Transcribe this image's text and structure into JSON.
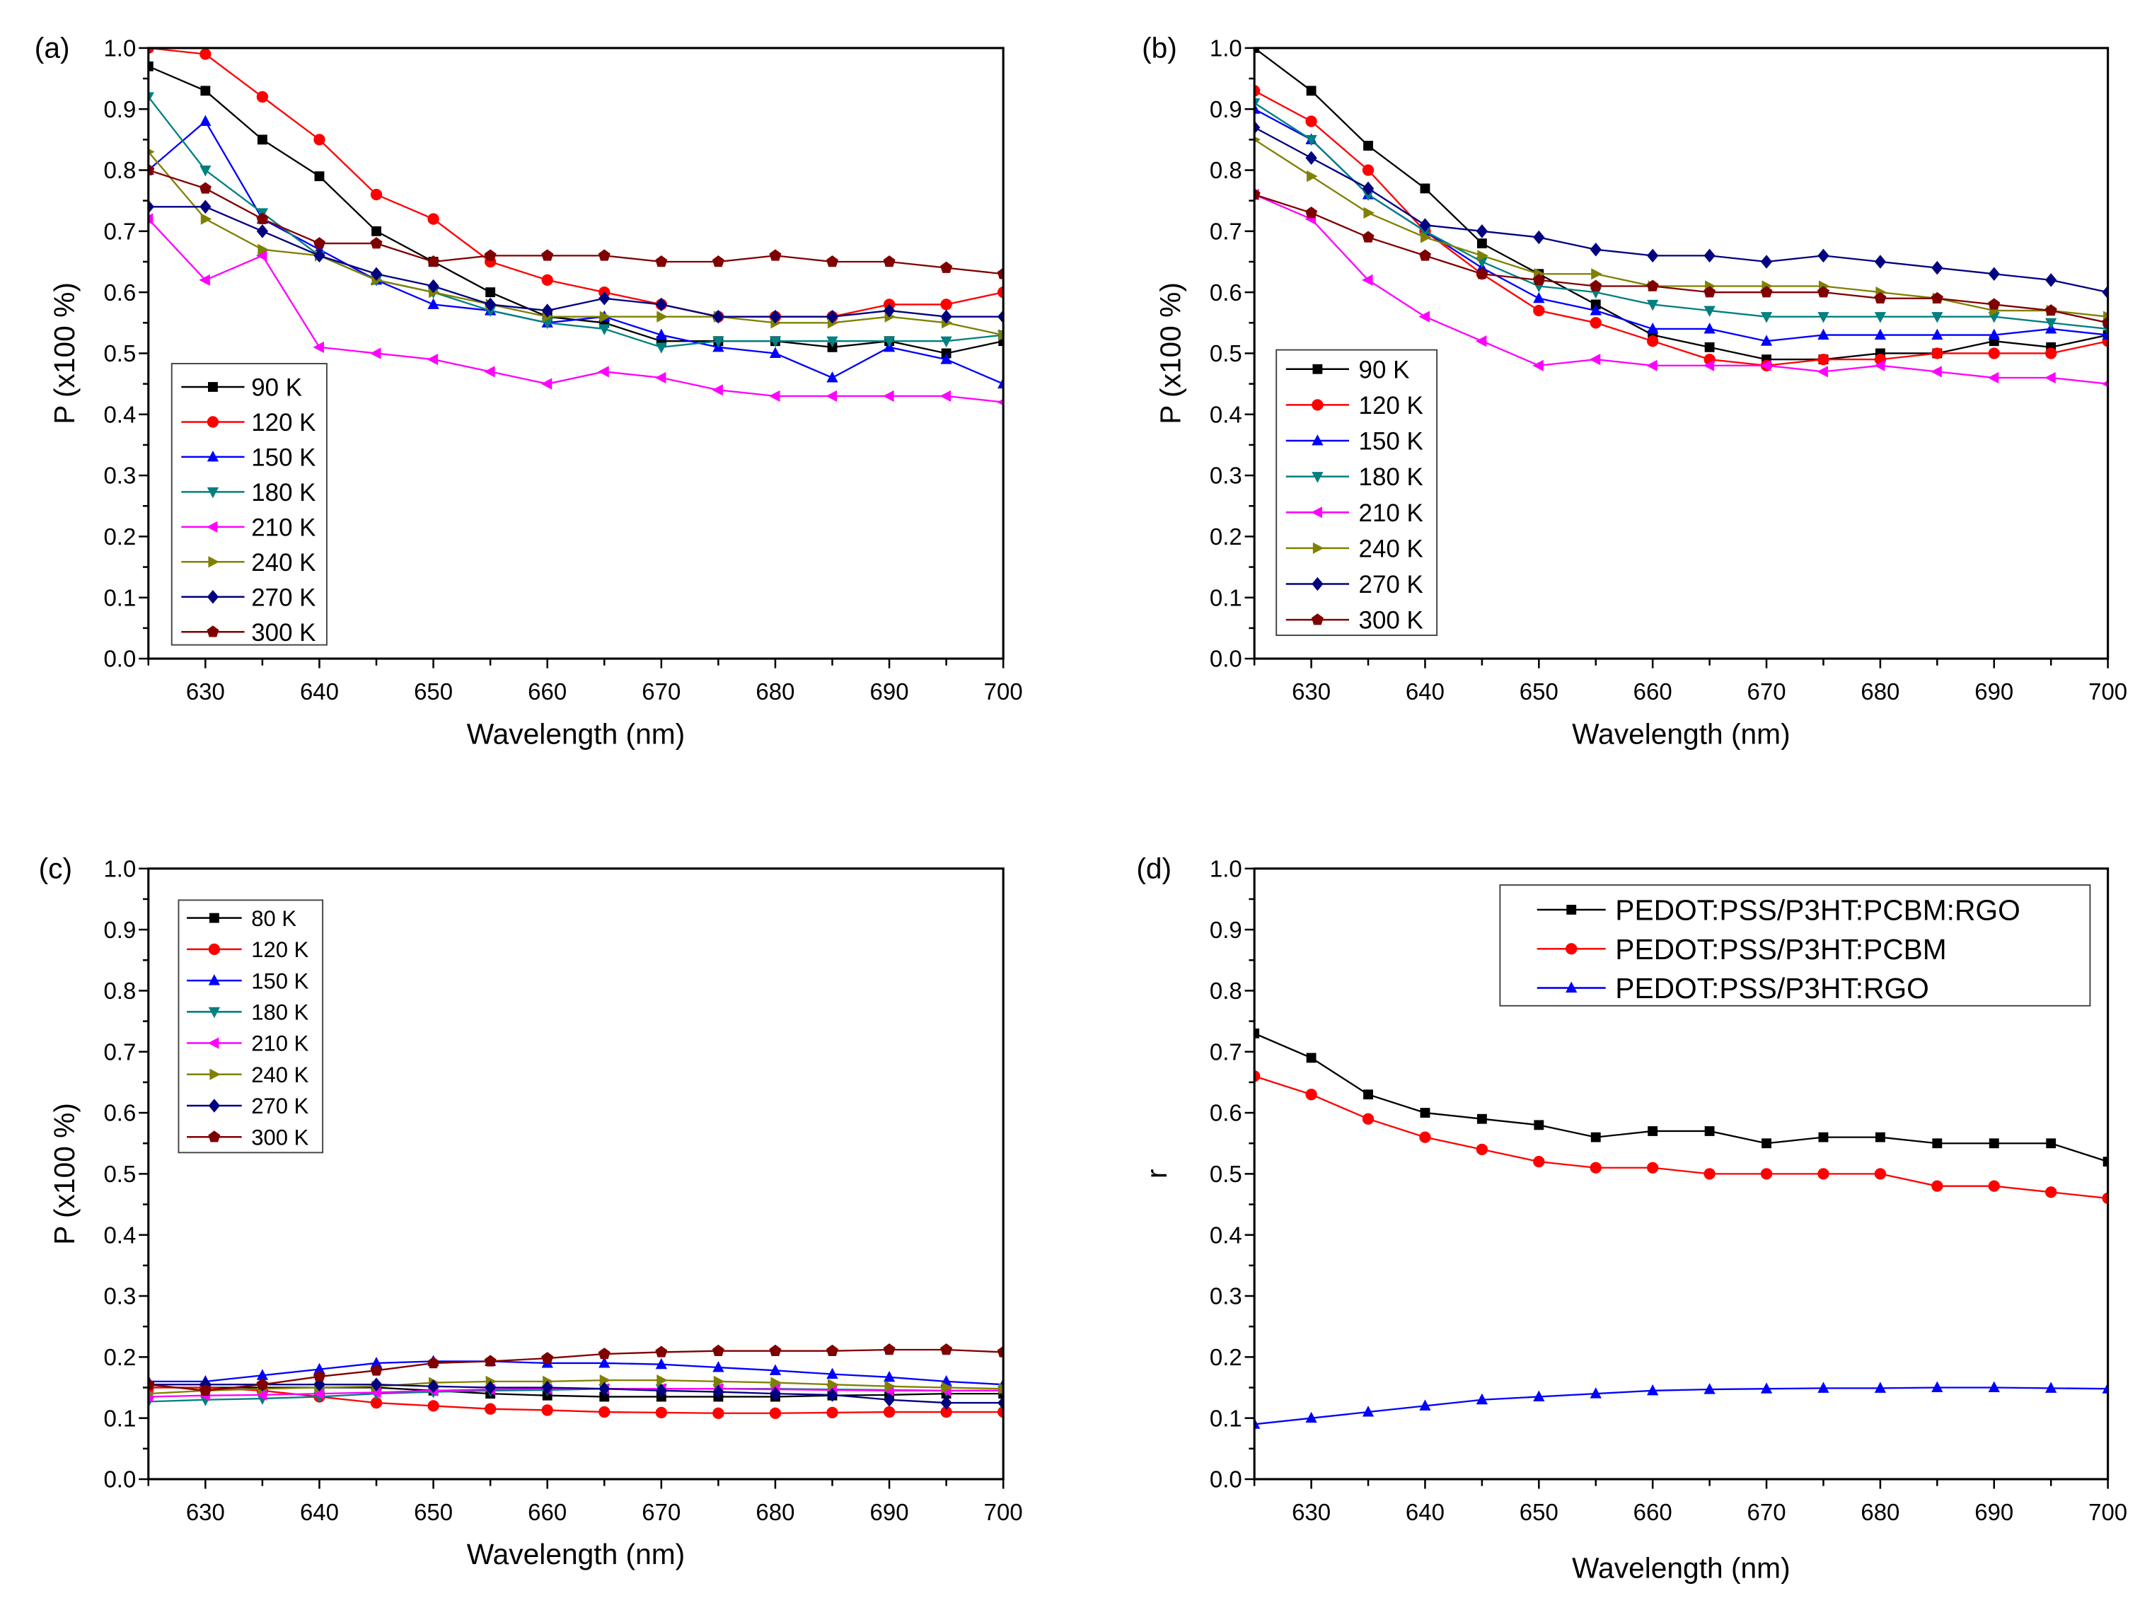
{
  "colors": {
    "90K": "#000000",
    "120K": "#ff0000",
    "150K": "#0000ff",
    "180K": "#008080",
    "210K": "#ff00ff",
    "240K": "#808000",
    "270K": "#000080",
    "300K": "#800000"
  },
  "chart_data": [
    {
      "panel_label": "(a)",
      "type": "line",
      "xlabel": "Wavelength (nm)",
      "ylabel": "P (x100 %)",
      "xlim": [
        625,
        700
      ],
      "ylim": [
        0,
        1.0
      ],
      "xticks": [
        630,
        640,
        650,
        660,
        670,
        680,
        690,
        700
      ],
      "yticks": [
        "0.0",
        "0.1",
        "0.2",
        "0.3",
        "0.4",
        "0.5",
        "0.6",
        "0.7",
        "0.8",
        "0.9",
        "1.0"
      ],
      "legend": "bottom-left",
      "grid": false,
      "x": [
        625,
        630,
        635,
        640,
        645,
        650,
        655,
        660,
        665,
        670,
        675,
        680,
        685,
        690,
        695,
        700
      ],
      "series": [
        {
          "name": "90 K",
          "color": "#000000",
          "marker": "square",
          "values": [
            0.97,
            0.93,
            0.85,
            0.79,
            0.7,
            0.65,
            0.6,
            0.56,
            0.55,
            0.52,
            0.52,
            0.52,
            0.51,
            0.52,
            0.5,
            0.52
          ]
        },
        {
          "name": "120 K",
          "color": "#ff0000",
          "marker": "circle",
          "values": [
            1.0,
            0.99,
            0.92,
            0.85,
            0.76,
            0.72,
            0.65,
            0.62,
            0.6,
            0.58,
            0.56,
            0.56,
            0.56,
            0.58,
            0.58,
            0.6
          ]
        },
        {
          "name": "150 K",
          "color": "#0000ff",
          "marker": "triangle-up",
          "values": [
            0.8,
            0.88,
            0.72,
            0.67,
            0.62,
            0.58,
            0.57,
            0.55,
            0.56,
            0.53,
            0.51,
            0.5,
            0.46,
            0.51,
            0.49,
            0.45
          ]
        },
        {
          "name": "180 K",
          "color": "#008080",
          "marker": "triangle-down",
          "values": [
            0.92,
            0.8,
            0.73,
            0.66,
            0.62,
            0.6,
            0.57,
            0.55,
            0.54,
            0.51,
            0.52,
            0.52,
            0.52,
            0.52,
            0.52,
            0.53
          ]
        },
        {
          "name": "210 K",
          "color": "#ff00ff",
          "marker": "triangle-left",
          "values": [
            0.72,
            0.62,
            0.66,
            0.51,
            0.5,
            0.49,
            0.47,
            0.45,
            0.47,
            0.46,
            0.44,
            0.43,
            0.43,
            0.43,
            0.43,
            0.42
          ]
        },
        {
          "name": "240 K",
          "color": "#808000",
          "marker": "triangle-right",
          "values": [
            0.83,
            0.72,
            0.67,
            0.66,
            0.62,
            0.6,
            0.58,
            0.56,
            0.56,
            0.56,
            0.56,
            0.55,
            0.55,
            0.56,
            0.55,
            0.53
          ]
        },
        {
          "name": "270 K",
          "color": "#000080",
          "marker": "diamond",
          "values": [
            0.74,
            0.74,
            0.7,
            0.66,
            0.63,
            0.61,
            0.58,
            0.57,
            0.59,
            0.58,
            0.56,
            0.56,
            0.56,
            0.57,
            0.56,
            0.56
          ]
        },
        {
          "name": "300 K",
          "color": "#800000",
          "marker": "pentagon",
          "values": [
            0.8,
            0.77,
            0.72,
            0.68,
            0.68,
            0.65,
            0.66,
            0.66,
            0.66,
            0.65,
            0.65,
            0.66,
            0.65,
            0.65,
            0.64,
            0.63
          ]
        }
      ]
    },
    {
      "panel_label": "(b)",
      "type": "line",
      "xlabel": "Wavelength (nm)",
      "ylabel": "P (x100 %)",
      "xlim": [
        625,
        700
      ],
      "ylim": [
        0,
        1.0
      ],
      "xticks": [
        630,
        640,
        650,
        660,
        670,
        680,
        690,
        700
      ],
      "yticks": [
        "0.0",
        "0.1",
        "0.2",
        "0.3",
        "0.4",
        "0.5",
        "0.6",
        "0.7",
        "0.8",
        "0.9",
        "1.0"
      ],
      "legend": "bottom-left",
      "grid": false,
      "x": [
        625,
        630,
        635,
        640,
        645,
        650,
        655,
        660,
        665,
        670,
        675,
        680,
        685,
        690,
        695,
        700
      ],
      "series": [
        {
          "name": "90 K",
          "color": "#000000",
          "marker": "square",
          "values": [
            1.0,
            0.93,
            0.84,
            0.77,
            0.68,
            0.63,
            0.58,
            0.53,
            0.51,
            0.49,
            0.49,
            0.5,
            0.5,
            0.52,
            0.51,
            0.53
          ]
        },
        {
          "name": "120 K",
          "color": "#ff0000",
          "marker": "circle",
          "values": [
            0.93,
            0.88,
            0.8,
            0.7,
            0.63,
            0.57,
            0.55,
            0.52,
            0.49,
            0.48,
            0.49,
            0.49,
            0.5,
            0.5,
            0.5,
            0.52
          ]
        },
        {
          "name": "150 K",
          "color": "#0000ff",
          "marker": "triangle-up",
          "values": [
            0.9,
            0.85,
            0.76,
            0.7,
            0.64,
            0.59,
            0.57,
            0.54,
            0.54,
            0.52,
            0.53,
            0.53,
            0.53,
            0.53,
            0.54,
            0.53
          ]
        },
        {
          "name": "180 K",
          "color": "#008080",
          "marker": "triangle-down",
          "values": [
            0.91,
            0.85,
            0.76,
            0.7,
            0.65,
            0.61,
            0.6,
            0.58,
            0.57,
            0.56,
            0.56,
            0.56,
            0.56,
            0.56,
            0.55,
            0.54
          ]
        },
        {
          "name": "210 K",
          "color": "#ff00ff",
          "marker": "triangle-left",
          "values": [
            0.76,
            0.72,
            0.62,
            0.56,
            0.52,
            0.48,
            0.49,
            0.48,
            0.48,
            0.48,
            0.47,
            0.48,
            0.47,
            0.46,
            0.46,
            0.45
          ]
        },
        {
          "name": "240 K",
          "color": "#808000",
          "marker": "triangle-right",
          "values": [
            0.85,
            0.79,
            0.73,
            0.69,
            0.66,
            0.63,
            0.63,
            0.61,
            0.61,
            0.61,
            0.61,
            0.6,
            0.59,
            0.57,
            0.57,
            0.56
          ]
        },
        {
          "name": "270 K",
          "color": "#000080",
          "marker": "diamond",
          "values": [
            0.87,
            0.82,
            0.77,
            0.71,
            0.7,
            0.69,
            0.67,
            0.66,
            0.66,
            0.65,
            0.66,
            0.65,
            0.64,
            0.63,
            0.62,
            0.6
          ]
        },
        {
          "name": "300 K",
          "color": "#800000",
          "marker": "pentagon",
          "values": [
            0.76,
            0.73,
            0.69,
            0.66,
            0.63,
            0.62,
            0.61,
            0.61,
            0.6,
            0.6,
            0.6,
            0.59,
            0.59,
            0.58,
            0.57,
            0.55
          ]
        }
      ]
    },
    {
      "panel_label": "(c)",
      "type": "line",
      "xlabel": "Wavelength (nm)",
      "ylabel": "P (x100 %)",
      "xlim": [
        625,
        700
      ],
      "ylim": [
        0,
        1.0
      ],
      "xticks": [
        630,
        640,
        650,
        660,
        670,
        680,
        690,
        700
      ],
      "yticks": [
        "0.0",
        "0.1",
        "0.2",
        "0.3",
        "0.4",
        "0.5",
        "0.6",
        "0.7",
        "0.8",
        "0.9",
        "1.0"
      ],
      "legend": "top-left",
      "grid": false,
      "x": [
        625,
        630,
        635,
        640,
        645,
        650,
        655,
        660,
        665,
        670,
        675,
        680,
        685,
        690,
        695,
        700
      ],
      "series": [
        {
          "name": "80 K",
          "color": "#000000",
          "marker": "square",
          "values": [
            0.15,
            0.15,
            0.15,
            0.15,
            0.15,
            0.145,
            0.14,
            0.137,
            0.135,
            0.135,
            0.135,
            0.135,
            0.137,
            0.138,
            0.14,
            0.14
          ]
        },
        {
          "name": "120 K",
          "color": "#ff0000",
          "marker": "circle",
          "values": [
            0.15,
            0.15,
            0.145,
            0.135,
            0.125,
            0.12,
            0.115,
            0.113,
            0.11,
            0.109,
            0.108,
            0.108,
            0.109,
            0.11,
            0.11,
            0.11
          ]
        },
        {
          "name": "150 K",
          "color": "#0000ff",
          "marker": "triangle-up",
          "values": [
            0.16,
            0.16,
            0.17,
            0.18,
            0.19,
            0.193,
            0.193,
            0.19,
            0.19,
            0.188,
            0.183,
            0.178,
            0.172,
            0.167,
            0.16,
            0.155
          ]
        },
        {
          "name": "180 K",
          "color": "#008080",
          "marker": "triangle-down",
          "values": [
            0.127,
            0.13,
            0.132,
            0.135,
            0.14,
            0.143,
            0.145,
            0.146,
            0.148,
            0.148,
            0.148,
            0.148,
            0.147,
            0.146,
            0.145,
            0.145
          ]
        },
        {
          "name": "210 K",
          "color": "#ff00ff",
          "marker": "triangle-left",
          "values": [
            0.135,
            0.137,
            0.138,
            0.14,
            0.142,
            0.145,
            0.147,
            0.148,
            0.148,
            0.148,
            0.148,
            0.147,
            0.146,
            0.145,
            0.145,
            0.145
          ]
        },
        {
          "name": "240 K",
          "color": "#808000",
          "marker": "triangle-right",
          "values": [
            0.14,
            0.145,
            0.148,
            0.15,
            0.152,
            0.158,
            0.16,
            0.16,
            0.162,
            0.162,
            0.16,
            0.158,
            0.155,
            0.152,
            0.15,
            0.148
          ]
        },
        {
          "name": "270 K",
          "color": "#000080",
          "marker": "diamond",
          "values": [
            0.155,
            0.155,
            0.155,
            0.155,
            0.155,
            0.152,
            0.15,
            0.15,
            0.148,
            0.145,
            0.143,
            0.14,
            0.138,
            0.13,
            0.125,
            0.125
          ]
        },
        {
          "name": "300 K",
          "color": "#800000",
          "marker": "pentagon",
          "values": [
            0.155,
            0.145,
            0.155,
            0.168,
            0.178,
            0.19,
            0.193,
            0.198,
            0.205,
            0.208,
            0.21,
            0.21,
            0.21,
            0.212,
            0.212,
            0.208
          ]
        }
      ]
    },
    {
      "panel_label": "(d)",
      "type": "line",
      "xlabel": "Wavelength (nm)",
      "ylabel": "r",
      "xlim": [
        625,
        700
      ],
      "ylim": [
        0,
        1.0
      ],
      "xticks": [
        630,
        640,
        650,
        660,
        670,
        680,
        690,
        700
      ],
      "yticks": [
        "0.0",
        "0.1",
        "0.2",
        "0.3",
        "0.4",
        "0.5",
        "0.6",
        "0.7",
        "0.8",
        "0.9",
        "1.0"
      ],
      "legend": "top-right",
      "grid": false,
      "x": [
        625,
        630,
        635,
        640,
        645,
        650,
        655,
        660,
        665,
        670,
        675,
        680,
        685,
        690,
        695,
        700
      ],
      "series": [
        {
          "name": "PEDOT:PSS/P3HT:PCBM:RGO",
          "color": "#000000",
          "marker": "square",
          "values": [
            0.73,
            0.69,
            0.63,
            0.6,
            0.59,
            0.58,
            0.56,
            0.57,
            0.57,
            0.55,
            0.56,
            0.56,
            0.55,
            0.55,
            0.55,
            0.52
          ]
        },
        {
          "name": "PEDOT:PSS/P3HT:PCBM",
          "color": "#ff0000",
          "marker": "circle",
          "values": [
            0.66,
            0.63,
            0.59,
            0.56,
            0.54,
            0.52,
            0.51,
            0.51,
            0.5,
            0.5,
            0.5,
            0.5,
            0.48,
            0.48,
            0.47,
            0.46
          ]
        },
        {
          "name": "PEDOT:PSS/P3HT:RGO",
          "color": "#0000ff",
          "marker": "triangle-up",
          "values": [
            0.09,
            0.1,
            0.11,
            0.12,
            0.13,
            0.135,
            0.14,
            0.145,
            0.147,
            0.148,
            0.149,
            0.149,
            0.15,
            0.15,
            0.149,
            0.148
          ]
        }
      ]
    }
  ]
}
